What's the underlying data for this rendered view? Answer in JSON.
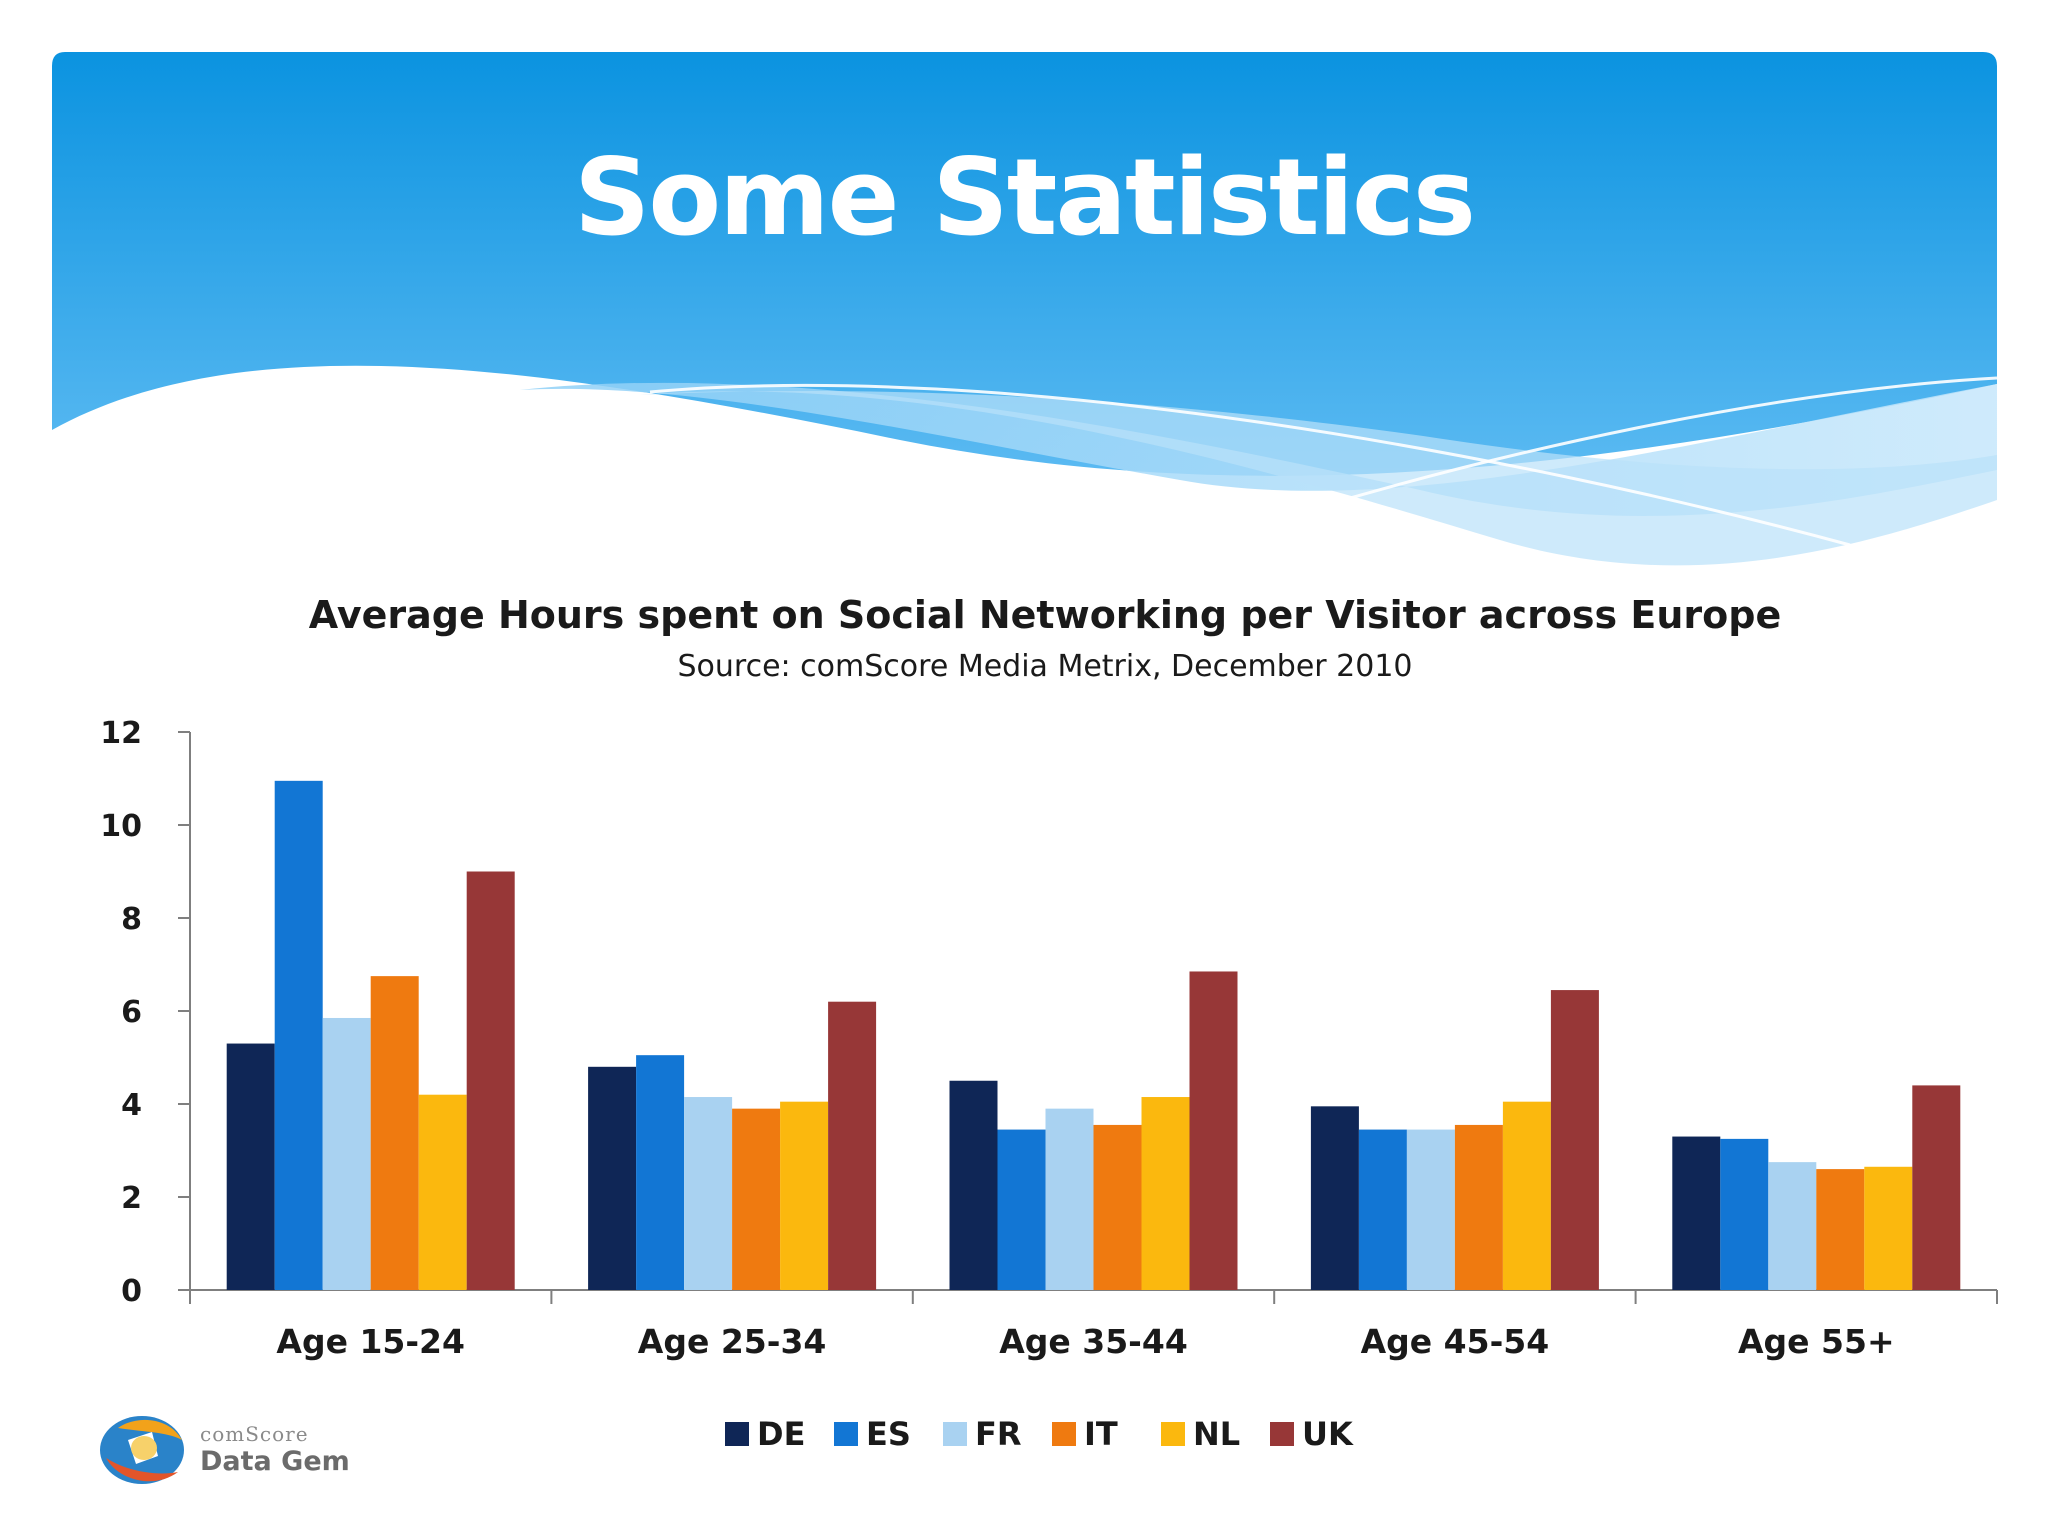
{
  "slide": {
    "title": "Some Statistics"
  },
  "colors": {
    "header_top": "#0b93e0",
    "header_bottom": "#5bb8f0"
  },
  "logo": {
    "line1": "comScore",
    "line2": "Data Gem"
  },
  "chart_data": {
    "type": "bar",
    "title": "Average Hours spent on Social Networking per Visitor across Europe",
    "subtitle": "Source: comScore Media Metrix, December 2010",
    "xlabel": "",
    "ylabel": "",
    "ylim": [
      0,
      12
    ],
    "yticks": [
      0,
      2,
      4,
      6,
      8,
      10,
      12
    ],
    "grid": false,
    "legend_position": "bottom",
    "categories": [
      "Age 15-24",
      "Age 25-34",
      "Age 35-44",
      "Age 45-54",
      "Age 55+"
    ],
    "series": [
      {
        "name": "DE",
        "color": "#0f2656",
        "values": [
          5.3,
          4.8,
          4.5,
          3.95,
          3.3
        ]
      },
      {
        "name": "ES",
        "color": "#1276d4",
        "values": [
          10.95,
          5.05,
          3.45,
          3.45,
          3.25
        ]
      },
      {
        "name": "FR",
        "color": "#a9d2f1",
        "values": [
          5.85,
          4.15,
          3.9,
          3.45,
          2.75
        ]
      },
      {
        "name": "IT",
        "color": "#ef7a10",
        "values": [
          6.75,
          3.9,
          3.55,
          3.55,
          2.6
        ]
      },
      {
        "name": "NL",
        "color": "#fbb80e",
        "values": [
          4.2,
          4.05,
          4.15,
          4.05,
          2.65
        ]
      },
      {
        "name": "UK",
        "color": "#973737",
        "values": [
          9.0,
          6.2,
          6.85,
          6.45,
          4.4
        ]
      }
    ]
  }
}
